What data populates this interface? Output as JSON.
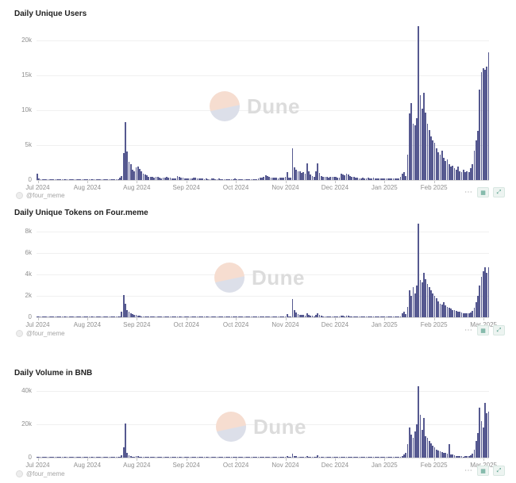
{
  "watermark": {
    "text": "Dune"
  },
  "legend": {
    "label": "@four_meme"
  },
  "actions": {
    "ellipsis": "⋯",
    "grid_glyph": "▦",
    "expand_glyph": "⤢"
  },
  "colors": {
    "bar": "#565990",
    "grid": "#f0f0f0",
    "axis": "#d9d9d9",
    "tick_text": "#8f8f8f",
    "title_text": "#1f1f1f",
    "watermark_text": "#dcdcdc",
    "watermark_peach": "#f6ddd0",
    "watermark_blue": "#dcdfe9"
  },
  "chart_data": [
    {
      "type": "bar",
      "title": "Daily Unique Users",
      "ylabel": "",
      "xlabel": "",
      "legend_position": "bottom-left",
      "grid": true,
      "ylim": [
        0,
        22600
      ],
      "y_tick_values": [
        0,
        5000,
        10000,
        15000,
        20000
      ],
      "y_tick_labels": [
        "0",
        "5k",
        "10k",
        "15k",
        "20k"
      ],
      "x_tick_labels": [
        "Jul 2024",
        "Aug 2024",
        "Aug 2024",
        "Sep 2024",
        "Oct 2024",
        "Nov 2024",
        "Dec 2024",
        "Jan 2025",
        "Feb 2025"
      ],
      "values": [
        900,
        250,
        120,
        60,
        45,
        35,
        50,
        40,
        30,
        45,
        55,
        35,
        25,
        40,
        60,
        50,
        35,
        30,
        45,
        40,
        35,
        55,
        45,
        30,
        40,
        35,
        50,
        45,
        40,
        35,
        30,
        60,
        45,
        70,
        55,
        40,
        65,
        50,
        45,
        80,
        60,
        55,
        70,
        90,
        75,
        110,
        300,
        600,
        3900,
        8300,
        4100,
        2600,
        2300,
        1500,
        1200,
        1800,
        1900,
        1600,
        1200,
        900,
        750,
        650,
        500,
        450,
        400,
        350,
        500,
        400,
        300,
        280,
        350,
        300,
        420,
        380,
        300,
        260,
        240,
        220,
        600,
        500,
        380,
        300,
        250,
        220,
        280,
        240,
        200,
        350,
        300,
        250,
        220,
        200,
        180,
        160,
        200,
        170,
        150,
        220,
        190,
        160,
        140,
        180,
        160,
        150,
        170,
        140,
        130,
        160,
        150,
        140,
        180,
        160,
        150,
        130,
        140,
        150,
        160,
        140,
        130,
        150,
        140,
        130,
        120,
        250,
        300,
        350,
        500,
        700,
        550,
        400,
        350,
        300,
        350,
        300,
        280,
        320,
        300,
        350,
        400,
        1100,
        350,
        300,
        4500,
        1800,
        1500,
        1300,
        1200,
        1000,
        1100,
        900,
        2400,
        1300,
        800,
        600,
        500,
        1300,
        2400,
        1000,
        600,
        500,
        450,
        400,
        350,
        400,
        450,
        500,
        400,
        350,
        300,
        900,
        800,
        700,
        900,
        750,
        600,
        500,
        400,
        350,
        300,
        280,
        260,
        300,
        280,
        250,
        300,
        280,
        260,
        300,
        280,
        250,
        240,
        260,
        280,
        250,
        230,
        250,
        270,
        240,
        220,
        250,
        230,
        280,
        400,
        900,
        1100,
        600,
        3600,
        9500,
        11000,
        8100,
        7800,
        8900,
        22000,
        12200,
        10200,
        12500,
        9700,
        8100,
        7200,
        6300,
        5700,
        5300,
        4500,
        4000,
        3600,
        4200,
        3200,
        2700,
        3000,
        2300,
        1900,
        2100,
        1700,
        1500,
        1900,
        1300,
        1100,
        1500,
        1100,
        1300,
        1100,
        1700,
        2300,
        4200,
        5700,
        7000,
        13000,
        15500,
        16000,
        15800,
        16200,
        18300
      ]
    },
    {
      "type": "bar",
      "title": "Daily Unique Tokens on Four.meme",
      "ylabel": "",
      "xlabel": "",
      "legend_position": "bottom-left",
      "grid": true,
      "ylim": [
        0,
        9000
      ],
      "y_tick_values": [
        0,
        2000,
        4000,
        6000,
        8000
      ],
      "y_tick_labels": [
        "0",
        "2k",
        "4k",
        "6k",
        "8k"
      ],
      "x_tick_labels": [
        "Jul 2024",
        "Aug 2024",
        "Sep 2024",
        "Oct 2024",
        "Oct 2024",
        "Nov 2024",
        "Dec 2024",
        "Jan 2025",
        "Feb 2025",
        "Mar 2025"
      ],
      "values": [
        40,
        10,
        5,
        8,
        6,
        4,
        5,
        6,
        4,
        5,
        8,
        6,
        4,
        5,
        6,
        8,
        5,
        4,
        6,
        5,
        4,
        8,
        6,
        4,
        5,
        4,
        6,
        5,
        4,
        6,
        5,
        8,
        6,
        10,
        8,
        6,
        9,
        7,
        6,
        12,
        9,
        8,
        10,
        14,
        12,
        20,
        60,
        500,
        2050,
        1250,
        700,
        500,
        350,
        300,
        250,
        200,
        160,
        130,
        110,
        90,
        80,
        70,
        60,
        55,
        50,
        45,
        60,
        50,
        40,
        38,
        45,
        40,
        55,
        50,
        40,
        35,
        32,
        30,
        70,
        60,
        48,
        40,
        33,
        30,
        36,
        32,
        28,
        45,
        40,
        33,
        30,
        28,
        25,
        22,
        28,
        24,
        20,
        30,
        26,
        22,
        19,
        25,
        22,
        20,
        23,
        19,
        18,
        22,
        20,
        19,
        25,
        22,
        20,
        18,
        19,
        20,
        22,
        19,
        18,
        20,
        19,
        18,
        16,
        30,
        35,
        40,
        60,
        90,
        70,
        50,
        45,
        40,
        45,
        40,
        36,
        42,
        40,
        45,
        50,
        300,
        45,
        40,
        1700,
        700,
        450,
        300,
        250,
        200,
        220,
        180,
        400,
        250,
        150,
        120,
        100,
        250,
        400,
        200,
        120,
        100,
        90,
        80,
        70,
        80,
        90,
        100,
        80,
        70,
        60,
        150,
        130,
        110,
        150,
        120,
        100,
        90,
        80,
        70,
        60,
        55,
        50,
        60,
        55,
        50,
        60,
        55,
        50,
        60,
        55,
        50,
        48,
        52,
        56,
        50,
        46,
        50,
        54,
        48,
        44,
        50,
        46,
        56,
        80,
        400,
        500,
        300,
        1000,
        2500,
        2000,
        2800,
        2200,
        3000,
        8800,
        3500,
        3300,
        4200,
        3600,
        3100,
        2800,
        2500,
        2200,
        2000,
        1800,
        1500,
        1300,
        1200,
        1400,
        1100,
        1000,
        900,
        800,
        700,
        650,
        600,
        550,
        500,
        450,
        400,
        380,
        350,
        400,
        450,
        600,
        900,
        1400,
        2000,
        3000,
        3800,
        4300,
        4700,
        4200,
        4700
      ]
    },
    {
      "type": "bar",
      "title": "Daily Volume in BNB",
      "ylabel": "",
      "xlabel": "",
      "legend_position": "bottom-left",
      "grid": true,
      "ylim": [
        0,
        45000
      ],
      "y_tick_values": [
        0,
        20000,
        40000
      ],
      "y_tick_labels": [
        "0",
        "20k",
        "40k"
      ],
      "x_tick_labels": [
        "Jul 2024",
        "Aug 2024",
        "Aug 2024",
        "Sep 2024",
        "Oct 2024",
        "Nov 2024",
        "Dec 2024",
        "Jan 2025",
        "Feb 2025",
        "Mar 2025"
      ],
      "values": [
        200,
        60,
        30,
        15,
        10,
        8,
        12,
        10,
        8,
        10,
        14,
        10,
        8,
        10,
        15,
        12,
        9,
        8,
        11,
        10,
        9,
        14,
        11,
        8,
        10,
        9,
        12,
        11,
        10,
        9,
        8,
        15,
        11,
        18,
        14,
        10,
        16,
        12,
        11,
        20,
        15,
        14,
        18,
        22,
        19,
        28,
        80,
        1500,
        6000,
        20500,
        3000,
        1500,
        800,
        500,
        400,
        800,
        900,
        700,
        400,
        300,
        250,
        200,
        150,
        130,
        120,
        100,
        150,
        120,
        90,
        85,
        100,
        90,
        130,
        115,
        90,
        80,
        72,
        66,
        180,
        150,
        115,
        90,
        75,
        66,
        84,
        72,
        60,
        105,
        90,
        75,
        66,
        60,
        54,
        48,
        60,
        51,
        45,
        66,
        57,
        48,
        42,
        54,
        48,
        45,
        51,
        42,
        39,
        48,
        45,
        42,
        54,
        48,
        45,
        39,
        42,
        45,
        48,
        42,
        39,
        45,
        42,
        39,
        36,
        75,
        90,
        105,
        150,
        210,
        165,
        120,
        105,
        90,
        105,
        90,
        84,
        96,
        90,
        105,
        120,
        800,
        105,
        90,
        2500,
        1200,
        800,
        500,
        400,
        330,
        360,
        300,
        900,
        450,
        250,
        200,
        160,
        450,
        1500,
        350,
        200,
        160,
        140,
        130,
        110,
        130,
        140,
        160,
        130,
        110,
        100,
        300,
        260,
        220,
        300,
        240,
        200,
        160,
        130,
        110,
        100,
        90,
        85,
        95,
        90,
        80,
        100,
        90,
        85,
        100,
        90,
        85,
        80,
        88,
        94,
        85,
        78,
        85,
        90,
        80,
        75,
        85,
        78,
        95,
        200,
        1000,
        2000,
        3000,
        8000,
        18000,
        14000,
        12000,
        16000,
        20000,
        43000,
        26000,
        17000,
        24000,
        13000,
        12000,
        10000,
        8500,
        7000,
        6000,
        5000,
        4500,
        4000,
        3500,
        3000,
        2800,
        2500,
        8000,
        2000,
        1800,
        1500,
        1200,
        1000,
        900,
        800,
        700,
        800,
        900,
        1000,
        1500,
        2500,
        5000,
        10000,
        15000,
        30000,
        22000,
        18000,
        33000,
        27000,
        28000
      ]
    }
  ]
}
